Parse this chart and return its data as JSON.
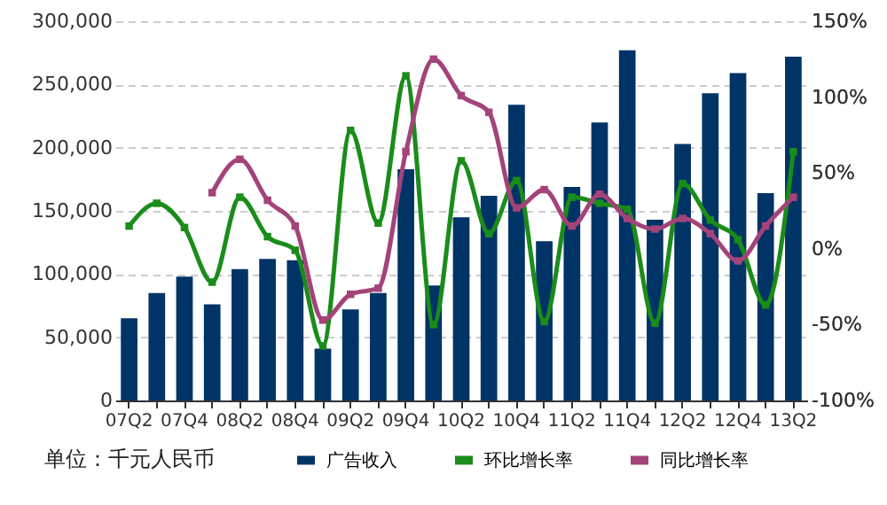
{
  "chart_data": {
    "type": "bar",
    "categories": [
      "07Q2",
      null,
      "07Q4",
      null,
      "08Q2",
      null,
      "08Q4",
      null,
      "09Q2",
      null,
      "09Q4",
      null,
      "10Q2",
      null,
      "10Q4",
      null,
      "11Q2",
      null,
      "11Q4",
      null,
      "12Q2",
      null,
      "12Q4",
      null,
      "13Q2"
    ],
    "series": [
      {
        "name": "广告收入",
        "color": "#003366",
        "values": [
          65000,
          85000,
          98000,
          76000,
          104000,
          112000,
          111000,
          41000,
          72000,
          85000,
          183000,
          91000,
          145000,
          162000,
          234000,
          126000,
          169000,
          220000,
          277000,
          143000,
          203000,
          243000,
          259000,
          164000,
          272000
        ]
      },
      {
        "name": "环比增长率",
        "type": "line",
        "axis": "y2",
        "color": "#1a8c1a",
        "values": [
          15,
          30,
          14,
          -22,
          34,
          8,
          -1,
          -64,
          78,
          17,
          114,
          -50,
          58,
          10,
          45,
          -48,
          34,
          30,
          26,
          -49,
          43,
          19,
          6,
          -37,
          64
        ]
      },
      {
        "name": "同比增长率",
        "type": "line",
        "axis": "y2",
        "color": "#a3437a",
        "values": [
          null,
          null,
          null,
          37,
          59,
          32,
          15,
          -47,
          -30,
          -26,
          64,
          125,
          101,
          90,
          27,
          39,
          15,
          36,
          20,
          13,
          20,
          10,
          -8,
          15,
          34
        ]
      }
    ],
    "ylim": [
      0,
      300000
    ],
    "yticks": [
      0,
      {
        "value": 50000,
        "label": "50,000"
      },
      {
        "value": 100000,
        "label": "100,000"
      },
      {
        "value": 150000,
        "label": "150,000"
      },
      {
        "value": 200000,
        "label": "200,000"
      },
      {
        "value": 250000,
        "label": "250,000"
      },
      {
        "value": 300000,
        "label": "300,000"
      }
    ],
    "y2lim": [
      -100,
      150
    ],
    "y2ticks": [
      {
        "value": -100,
        "label": "-100%"
      },
      {
        "value": -50,
        "label": "-50%"
      },
      {
        "value": 0,
        "label": "0%"
      },
      {
        "value": 50,
        "label": "50%"
      },
      {
        "value": 100,
        "label": "100%"
      },
      {
        "value": 150,
        "label": "150%"
      }
    ],
    "grid": "y",
    "legend": "bottom",
    "marker": "square",
    "line_style": "solid",
    "annotations": [
      "单位：千元人民币"
    ]
  }
}
